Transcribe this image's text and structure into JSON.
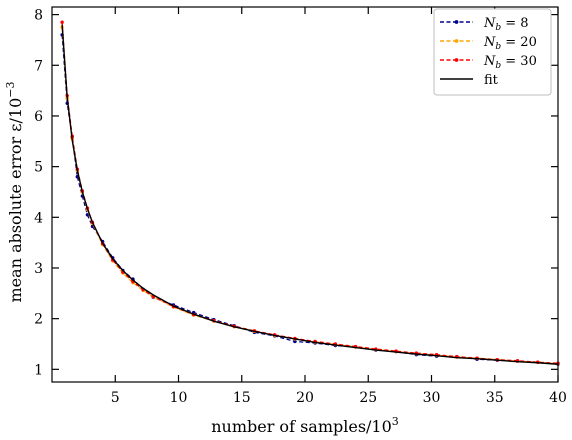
{
  "chart_data": {
    "type": "line",
    "xlabel": "number of samples/10",
    "xlabel_sup": "3",
    "ylabel": "mean absolute error ε/10",
    "ylabel_sup": "−3",
    "xlim": [
      0,
      40
    ],
    "ylim": [
      0.75,
      8.15
    ],
    "xticks": [
      5,
      10,
      15,
      20,
      25,
      30,
      35,
      40
    ],
    "xtick_labels": [
      "5",
      "10",
      "15",
      "20",
      "25",
      "30",
      "35",
      "40"
    ],
    "yticks": [
      1,
      2,
      3,
      4,
      5,
      6,
      7,
      8
    ],
    "ytick_labels": [
      "1",
      "2",
      "3",
      "4",
      "5",
      "6",
      "7",
      "8"
    ],
    "grid": false,
    "legend_position": "top-right",
    "x": [
      0.8,
      1.2,
      1.6,
      2.0,
      2.4,
      2.8,
      3.2,
      4.0,
      4.8,
      5.6,
      6.4,
      7.2,
      8.0,
      9.6,
      11.2,
      12.8,
      14.4,
      16.0,
      17.6,
      19.2,
      20.8,
      22.4,
      24.0,
      25.6,
      27.2,
      28.8,
      30.4,
      32.0,
      33.6,
      35.2,
      36.8,
      38.4,
      40.0
    ],
    "series": [
      {
        "name": "N_b = 8",
        "legend_main": "N",
        "legend_sub": "b",
        "legend_rest": " = 8",
        "color": "#00008b",
        "linestyle": "dashed",
        "marker": true,
        "values": [
          7.6,
          6.25,
          5.58,
          4.8,
          4.42,
          4.05,
          3.82,
          3.52,
          3.2,
          2.95,
          2.78,
          2.58,
          2.42,
          2.27,
          2.12,
          1.98,
          1.86,
          1.73,
          1.66,
          1.55,
          1.52,
          1.47,
          1.44,
          1.38,
          1.35,
          1.29,
          1.26,
          1.25,
          1.2,
          1.18,
          1.16,
          1.14,
          1.1
        ]
      },
      {
        "name": "N_b = 20",
        "legend_main": "N",
        "legend_sub": "b",
        "legend_rest": " = 20",
        "color": "#ffa500",
        "linestyle": "dashed",
        "marker": true,
        "values": [
          7.75,
          6.35,
          5.55,
          4.92,
          4.5,
          4.15,
          3.88,
          3.46,
          3.14,
          2.9,
          2.71,
          2.56,
          2.43,
          2.23,
          2.07,
          1.95,
          1.84,
          1.75,
          1.67,
          1.6,
          1.54,
          1.49,
          1.44,
          1.39,
          1.35,
          1.31,
          1.28,
          1.24,
          1.22,
          1.19,
          1.16,
          1.14,
          1.11
        ]
      },
      {
        "name": "N_b = 30",
        "legend_main": "N",
        "legend_sub": "b",
        "legend_rest": " = 30",
        "color": "#ff0000",
        "linestyle": "dashed",
        "marker": true,
        "values": [
          7.85,
          6.4,
          5.6,
          4.95,
          4.52,
          4.18,
          3.9,
          3.48,
          3.16,
          2.92,
          2.73,
          2.57,
          2.44,
          2.24,
          2.08,
          1.96,
          1.85,
          1.76,
          1.68,
          1.61,
          1.55,
          1.5,
          1.45,
          1.4,
          1.36,
          1.32,
          1.29,
          1.25,
          1.22,
          1.19,
          1.17,
          1.14,
          1.12
        ]
      },
      {
        "name": "fit",
        "legend_main": "fit",
        "legend_sub": "",
        "legend_rest": "",
        "color": "#000000",
        "linestyle": "solid",
        "marker": false,
        "values": [
          7.8,
          6.37,
          5.52,
          4.93,
          4.5,
          4.17,
          3.9,
          3.49,
          3.18,
          2.95,
          2.76,
          2.6,
          2.47,
          2.25,
          2.09,
          1.95,
          1.84,
          1.75,
          1.67,
          1.6,
          1.53,
          1.48,
          1.43,
          1.38,
          1.34,
          1.3,
          1.27,
          1.23,
          1.21,
          1.18,
          1.15,
          1.13,
          1.1
        ]
      }
    ]
  }
}
